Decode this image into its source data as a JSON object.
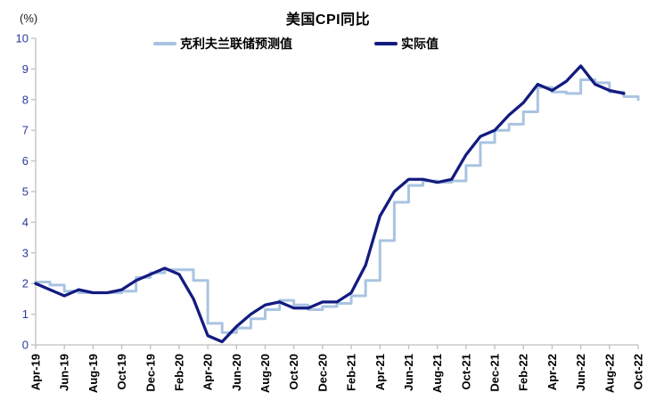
{
  "header": {
    "unit_label": "(%)",
    "title": "美国CPI同比"
  },
  "chart_data": {
    "type": "line",
    "title": "美国CPI同比",
    "ylabel": "(%)",
    "xlabel": "",
    "ylim": [
      0,
      10
    ],
    "y_ticks": [
      0,
      1,
      2,
      3,
      4,
      5,
      6,
      7,
      8,
      9,
      10
    ],
    "grid": false,
    "legend_position": "top-center",
    "x": [
      "Apr-19",
      "May-19",
      "Jun-19",
      "Jul-19",
      "Aug-19",
      "Sep-19",
      "Oct-19",
      "Nov-19",
      "Dec-19",
      "Jan-20",
      "Feb-20",
      "Mar-20",
      "Apr-20",
      "May-20",
      "Jun-20",
      "Jul-20",
      "Aug-20",
      "Sep-20",
      "Oct-20",
      "Nov-20",
      "Dec-20",
      "Jan-21",
      "Feb-21",
      "Mar-21",
      "Apr-21",
      "May-21",
      "Jun-21",
      "Jul-21",
      "Aug-21",
      "Sep-21",
      "Oct-21",
      "Nov-21",
      "Dec-21",
      "Jan-22",
      "Feb-22",
      "Mar-22",
      "Apr-22",
      "May-22",
      "Jun-22",
      "Jul-22",
      "Aug-22",
      "Sep-22",
      "Oct-22"
    ],
    "x_tick_labels": [
      "Apr-19",
      "Jun-19",
      "Aug-19",
      "Oct-19",
      "Dec-19",
      "Feb-20",
      "Apr-20",
      "Jun-20",
      "Aug-20",
      "Oct-20",
      "Dec-20",
      "Feb-21",
      "Apr-21",
      "Jun-21",
      "Aug-21",
      "Oct-21",
      "Dec-21",
      "Feb-22",
      "Apr-22",
      "Jun-22",
      "Aug-22",
      "Oct-22"
    ],
    "x_tick_every": 2,
    "series": [
      {
        "name": "克利夫兰联储预测值",
        "color": "#A9C4E2",
        "style": "step",
        "values": [
          2.05,
          1.95,
          1.75,
          1.7,
          1.7,
          1.7,
          1.75,
          2.2,
          2.35,
          2.45,
          2.45,
          2.1,
          0.7,
          0.4,
          0.55,
          0.85,
          1.15,
          1.45,
          1.3,
          1.15,
          1.25,
          1.35,
          1.6,
          2.1,
          3.4,
          4.65,
          5.2,
          5.35,
          5.3,
          5.35,
          5.85,
          6.6,
          7.0,
          7.2,
          7.6,
          8.4,
          8.25,
          8.2,
          8.65,
          8.55,
          8.25,
          8.1,
          8.0
        ]
      },
      {
        "name": "实际值",
        "color": "#131B80",
        "style": "line",
        "values": [
          2.0,
          1.8,
          1.6,
          1.8,
          1.7,
          1.7,
          1.8,
          2.1,
          2.3,
          2.5,
          2.3,
          1.5,
          0.3,
          0.1,
          0.6,
          1.0,
          1.3,
          1.4,
          1.2,
          1.2,
          1.4,
          1.4,
          1.7,
          2.6,
          4.2,
          5.0,
          5.4,
          5.4,
          5.3,
          5.4,
          6.2,
          6.8,
          7.0,
          7.5,
          7.9,
          8.5,
          8.3,
          8.6,
          9.1,
          8.5,
          8.3,
          8.2,
          null
        ]
      }
    ],
    "style_colors": {
      "axis_line": "#BFBFBF",
      "y_tick_label": "#2B3A9A",
      "x_tick_label": "#000000"
    }
  }
}
